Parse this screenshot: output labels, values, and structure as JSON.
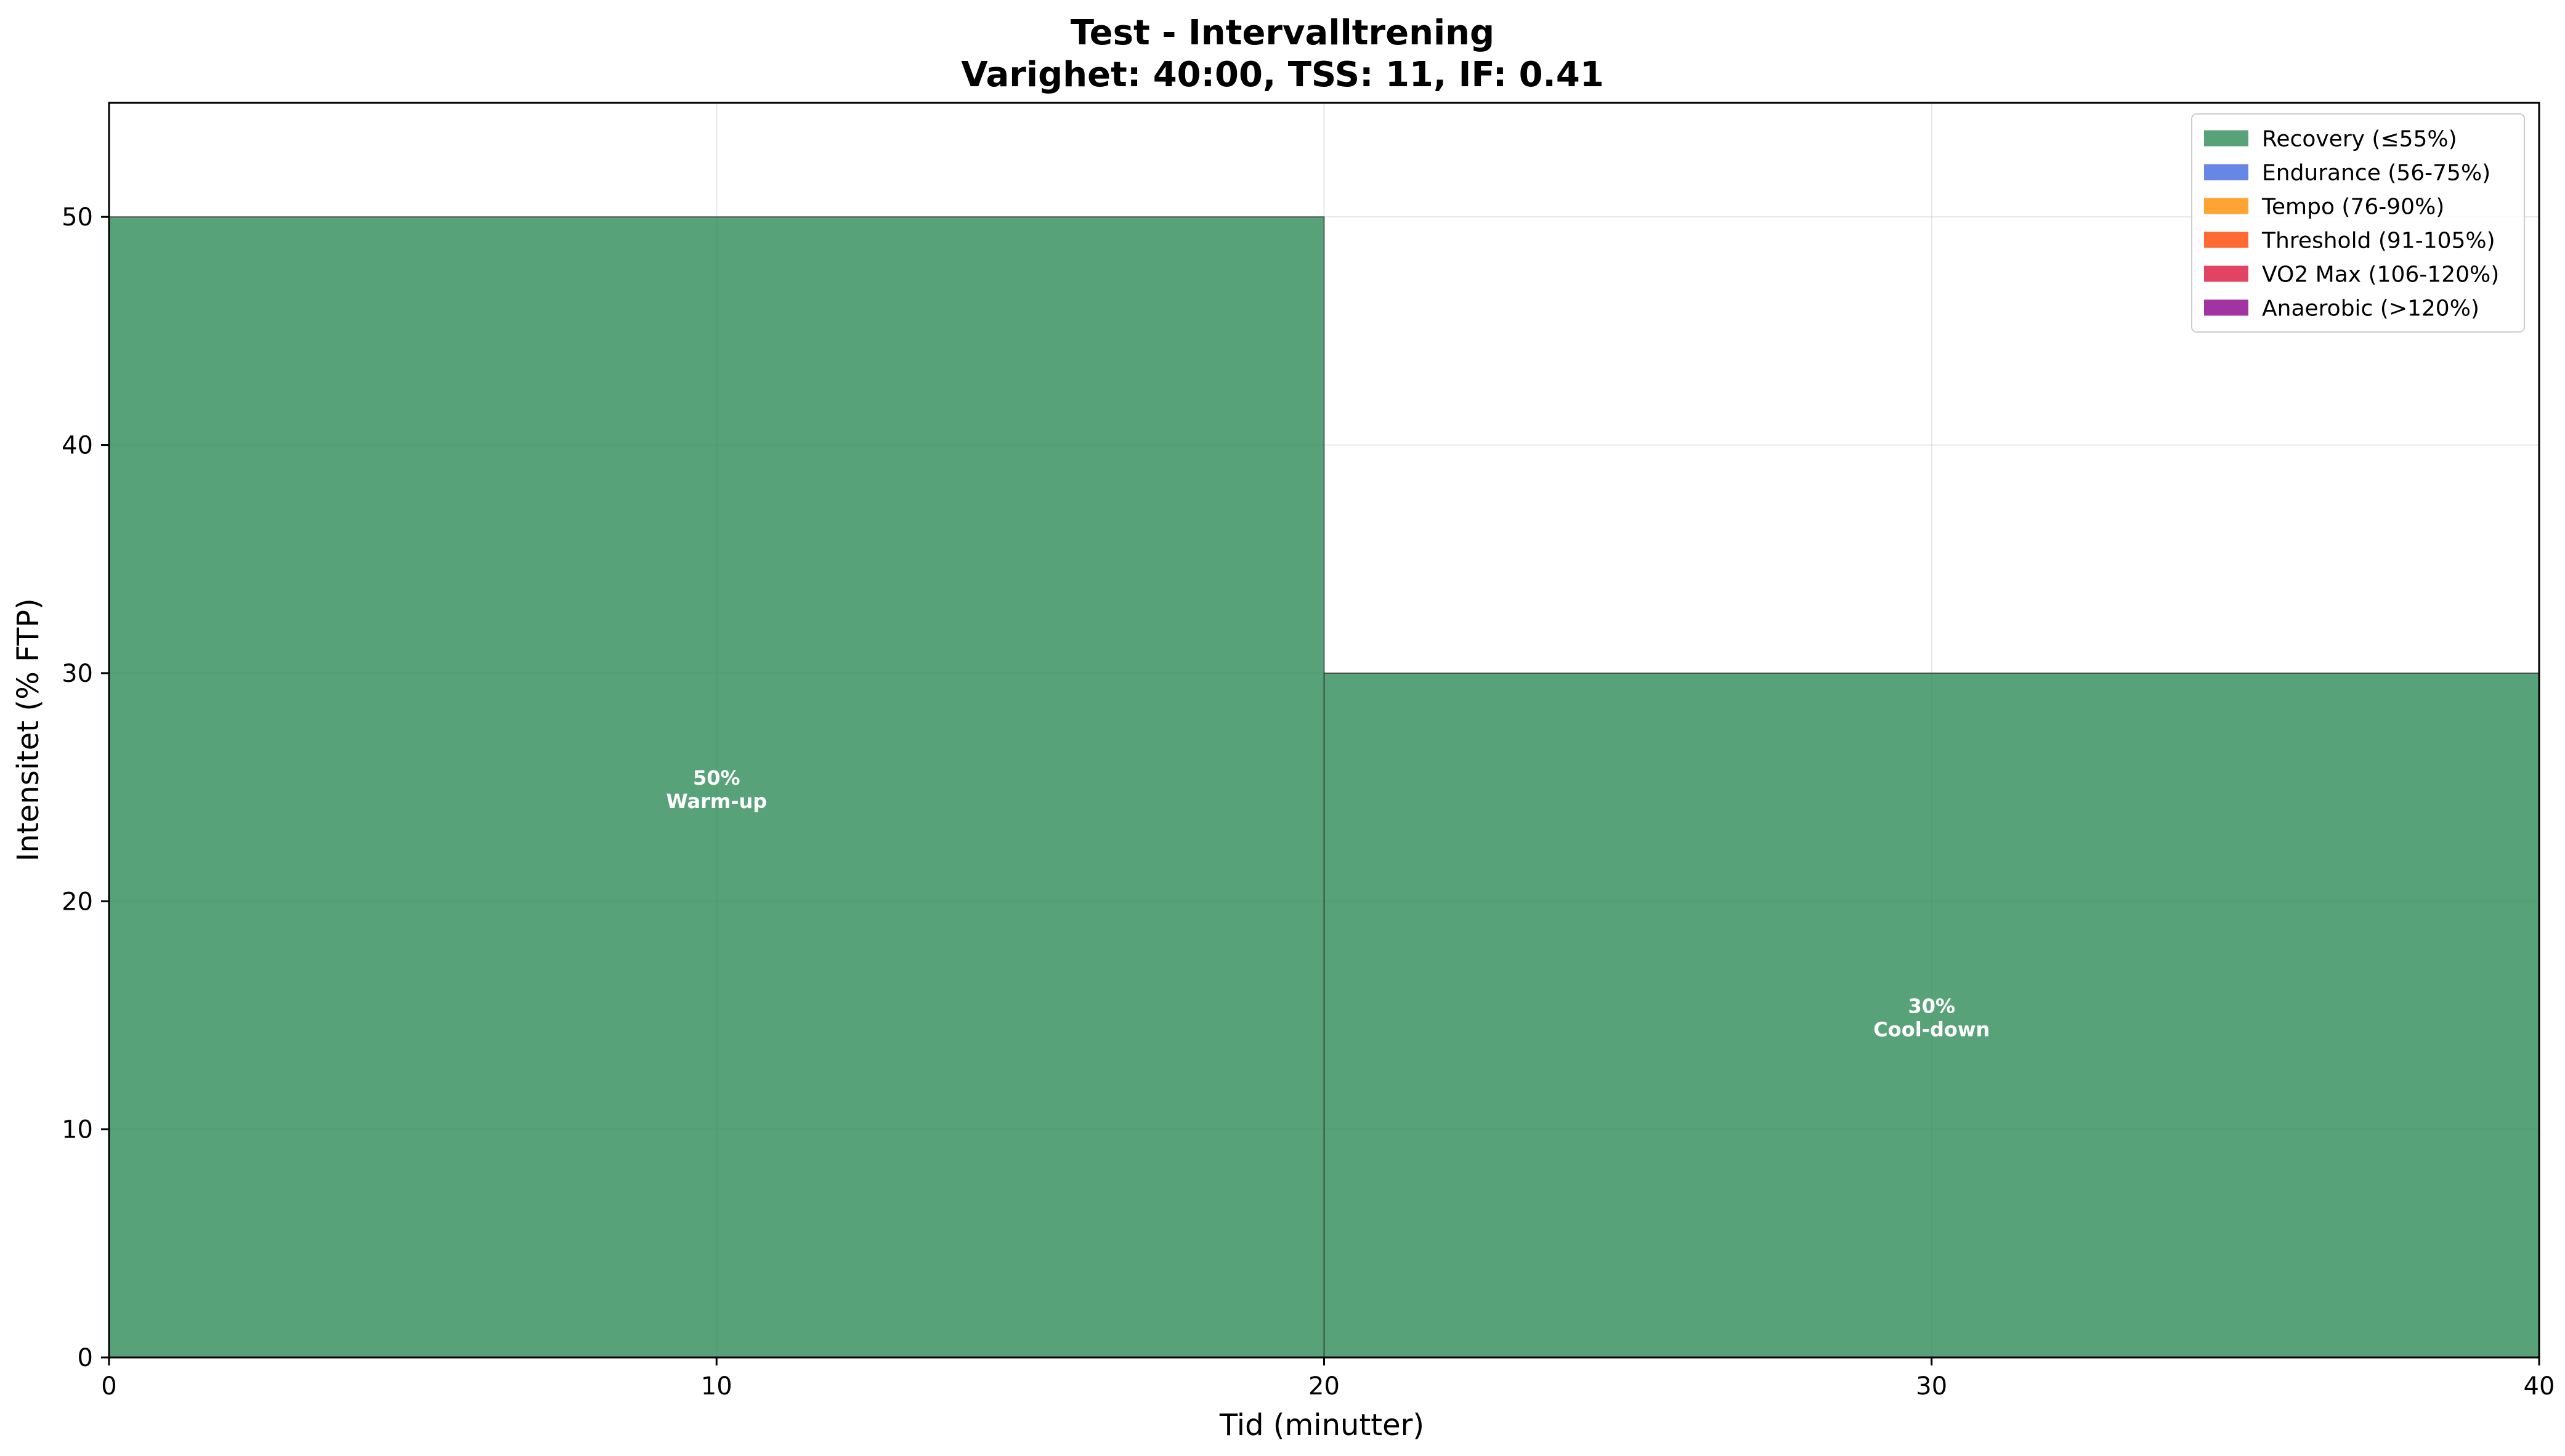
{
  "chart_data": {
    "type": "bar",
    "title": "Test - Intervalltrening",
    "subtitle": "Varighet: 40:00, TSS: 11, IF: 0.41",
    "xlabel": "Tid (minutter)",
    "ylabel": "Intensitet (% FTP)",
    "xlim": [
      0,
      40
    ],
    "ylim": [
      0,
      55
    ],
    "xticks": [
      0,
      10,
      20,
      30,
      40
    ],
    "yticks": [
      0,
      10,
      20,
      30,
      40,
      50
    ],
    "grid": true,
    "legend_position": "top-right",
    "segments": [
      {
        "start": 0,
        "end": 20,
        "value": 50,
        "zone": "Recovery (≤55%)",
        "label_value": "50%",
        "label_name": "Warm-up"
      },
      {
        "start": 20,
        "end": 40,
        "value": 30,
        "zone": "Recovery (≤55%)",
        "label_value": "30%",
        "label_name": "Cool-down"
      }
    ],
    "legend": [
      {
        "name": "Recovery (≤55%)",
        "color": "#2e8b57"
      },
      {
        "name": "Endurance (56-75%)",
        "color": "#4169e1"
      },
      {
        "name": "Tempo (76-90%)",
        "color": "#ff8c00"
      },
      {
        "name": "Threshold (91-105%)",
        "color": "#ff4500"
      },
      {
        "name": "VO2 Max (106-120%)",
        "color": "#dc143c"
      },
      {
        "name": "Anaerobic (>120%)",
        "color": "#8b008b"
      }
    ]
  }
}
